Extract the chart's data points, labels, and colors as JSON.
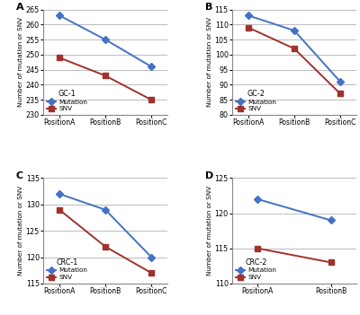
{
  "panels": [
    {
      "label": "A",
      "title": "GC-1",
      "mutation": [
        263,
        255,
        246
      ],
      "snv": [
        249,
        243,
        235
      ],
      "xvals": [
        0,
        1,
        2
      ],
      "xlabels": [
        "PositionA",
        "PositionB",
        "PositionC"
      ],
      "ylim": [
        230,
        265
      ],
      "yticks": [
        230,
        235,
        240,
        245,
        250,
        255,
        260,
        265
      ]
    },
    {
      "label": "B",
      "title": "GC-2",
      "mutation": [
        113,
        108,
        91
      ],
      "snv": [
        109,
        102,
        87
      ],
      "xvals": [
        0,
        1,
        2
      ],
      "xlabels": [
        "PositionA",
        "PositionB",
        "PositionC"
      ],
      "ylim": [
        80,
        115
      ],
      "yticks": [
        80,
        85,
        90,
        95,
        100,
        105,
        110,
        115
      ]
    },
    {
      "label": "C",
      "title": "CRC-1",
      "mutation": [
        132,
        129,
        120
      ],
      "snv": [
        129,
        122,
        117
      ],
      "xvals": [
        0,
        1,
        2
      ],
      "xlabels": [
        "PositionA",
        "PositionB",
        "PositionC"
      ],
      "ylim": [
        115,
        135
      ],
      "yticks": [
        115,
        120,
        125,
        130,
        135
      ]
    },
    {
      "label": "D",
      "title": "CRC-2",
      "mutation": [
        122,
        119
      ],
      "snv": [
        115,
        113
      ],
      "xvals": [
        0,
        1
      ],
      "xlabels": [
        "PositionA",
        "PositionB"
      ],
      "ylim": [
        110,
        125
      ],
      "yticks": [
        110,
        115,
        120,
        125
      ]
    }
  ],
  "mutation_color": "#4472C4",
  "snv_color": "#A0322D",
  "ylabel": "Number of mutation or SNV",
  "background_color": "#FFFFFF",
  "grid_color": "#BBBBBB",
  "marker_mutation": "D",
  "marker_snv": "s",
  "markersize": 4.5,
  "linewidth": 1.4
}
